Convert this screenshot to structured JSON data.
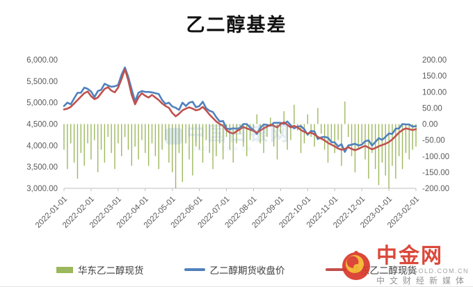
{
  "page": {
    "title": "乙二醇基差"
  },
  "chart_data": {
    "type": "bar+line combo",
    "title": "乙二醇基差",
    "grid": false,
    "legend_position": "bottom",
    "left_axis": {
      "min": 3000,
      "max": 6000,
      "ticks": [
        "6,000.00",
        "5,500.00",
        "5,000.00",
        "4,500.00",
        "4,000.00",
        "3,500.00",
        "3,000.00"
      ]
    },
    "right_axis": {
      "min": -200,
      "max": 200,
      "ticks": [
        "200.00",
        "150.00",
        "100.00",
        "50.00",
        "0.00",
        "-50.00",
        "-100.00",
        "-150.00",
        "-200.00"
      ]
    },
    "x_tick_labels": [
      "2022-01-01",
      "2022-02-01",
      "2022-03-01",
      "2022-04-01",
      "2022-05-01",
      "2022-06-01",
      "2022-07-01",
      "2022-08-01",
      "2022-09-01",
      "2022-10-01",
      "2022-11-01",
      "2022-12-01",
      "2023-01-01",
      "2023-02-01"
    ],
    "series": [
      {
        "name": "华东乙二醇现货",
        "display": "bar",
        "axis": "right",
        "color": "#9CB85C",
        "values": [
          -80,
          -140,
          -60,
          -120,
          -170,
          -90,
          -130,
          -60,
          -110,
          -50,
          -150,
          -80,
          -120,
          -40,
          -90,
          -140,
          -60,
          -100,
          -40,
          -80,
          -130,
          -70,
          -110,
          -50,
          -90,
          -130,
          -60,
          -100,
          -140,
          -80,
          -50,
          -120,
          -150,
          -200,
          -90,
          -180,
          -60,
          -110,
          -160,
          -70,
          -80,
          -120,
          -50,
          -90,
          -140,
          -100,
          -60,
          -110,
          -40,
          -80,
          -120,
          -60,
          -30,
          -70,
          -100,
          -50,
          -20,
          30,
          -60,
          -90,
          -40,
          20,
          -70,
          -110,
          -30,
          40,
          -80,
          -50,
          60,
          -20,
          -90,
          -60,
          30,
          -40,
          -70,
          50,
          -30,
          -80,
          -120,
          -60,
          -90,
          -50,
          -130,
          70,
          -40,
          -100,
          -150,
          -80,
          -60,
          -110,
          -170,
          -90,
          -140,
          -190,
          -120,
          -160,
          -200,
          -130,
          -170,
          -100,
          -140,
          -90,
          -110,
          -80,
          -70
        ]
      },
      {
        "name": "乙二醇期货收盘价",
        "display": "line",
        "axis": "left",
        "color": "#4F81BD",
        "values": [
          4920,
          5000,
          4960,
          5100,
          5230,
          5230,
          5350,
          5320,
          5260,
          5130,
          5270,
          5300,
          5440,
          5400,
          5370,
          5380,
          5410,
          5650,
          5820,
          5600,
          5310,
          5030,
          5230,
          5270,
          5250,
          5250,
          5240,
          5220,
          5200,
          5060,
          4970,
          5000,
          4910,
          4880,
          4830,
          5000,
          4920,
          5000,
          5020,
          4890,
          4920,
          5020,
          4870,
          4810,
          4780,
          4660,
          4560,
          4570,
          4400,
          4380,
          4400,
          4390,
          4410,
          4500,
          4500,
          4420,
          4360,
          4270,
          4410,
          4490,
          4480,
          4460,
          4530,
          4530,
          4530,
          4500,
          4560,
          4470,
          4400,
          4440,
          4450,
          4380,
          4250,
          4340,
          4330,
          4150,
          4190,
          4200,
          4180,
          4080,
          4070,
          3980,
          4030,
          3850,
          4000,
          4020,
          4040,
          4000,
          4020,
          4100,
          4120,
          4000,
          4080,
          4170,
          4130,
          4200,
          4280,
          4270,
          4390,
          4400,
          4500,
          4490,
          4490,
          4440,
          4450
        ]
      },
      {
        "name": "华东乙二醇现货",
        "display": "line",
        "axis": "left",
        "color": "#C0504D",
        "values": [
          4840,
          4860,
          4900,
          4980,
          5060,
          5140,
          5220,
          5260,
          5150,
          5080,
          5120,
          5220,
          5320,
          5360,
          5280,
          5240,
          5350,
          5550,
          5780,
          5520,
          5180,
          4960,
          5120,
          5220,
          5160,
          5120,
          5180,
          5120,
          5060,
          4980,
          4920,
          4880,
          4760,
          4680,
          4740,
          4820,
          4860,
          4890,
          4860,
          4820,
          4840,
          4900,
          4820,
          4720,
          4640,
          4560,
          4500,
          4460,
          4360,
          4300,
          4280,
          4330,
          4380,
          4430,
          4400,
          4370,
          4340,
          4300,
          4350,
          4400,
          4440,
          4480,
          4460,
          4420,
          4500,
          4540,
          4480,
          4420,
          4460,
          4420,
          4360,
          4320,
          4280,
          4300,
          4260,
          4200,
          4160,
          4120,
          4060,
          4020,
          3980,
          3930,
          3900,
          3920,
          3960,
          3920,
          3890,
          3920,
          3960,
          3990,
          3950,
          3910,
          3940,
          3980,
          4010,
          4040,
          4080,
          4140,
          4220,
          4300,
          4360,
          4400,
          4380,
          4360,
          4380
        ]
      }
    ]
  },
  "legend": {
    "items": [
      {
        "label": "华东乙二醇现货",
        "swatch": "bar",
        "color": "#9CB85C"
      },
      {
        "label": "乙二醇期货收盘价",
        "swatch": "line",
        "color": "#4F81BD"
      },
      {
        "label": "华东乙二醇现货",
        "swatch": "line",
        "color": "#C0504D"
      }
    ]
  },
  "watermark": {
    "text": "中国白银网",
    "subtext": "CNGOLD.COM.CN"
  },
  "logo": {
    "name": "中金网",
    "domain": ".COM.CN",
    "domain_prefix": "CNGOLD",
    "tagline": "中文财经新媒体"
  }
}
